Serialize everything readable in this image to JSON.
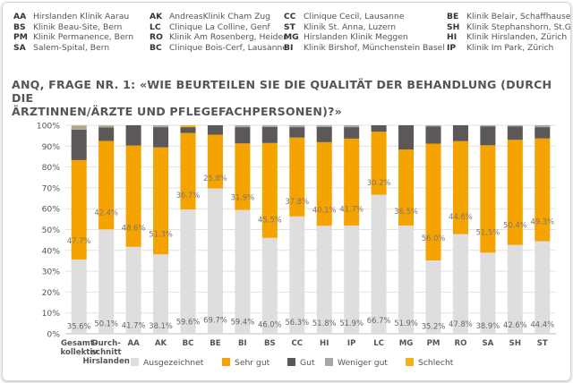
{
  "codes": [
    {
      "code": "AA",
      "name": "Hirslanden Klinik Aarau"
    },
    {
      "code": "BS",
      "name": "Klinik Beau-Site, Bern"
    },
    {
      "code": "PM",
      "name": "Klinik Permanence, Bern"
    },
    {
      "code": "SA",
      "name": "Salem-Spital, Bern"
    },
    {
      "code": "AK",
      "name": "AndreasKlinik Cham Zug"
    },
    {
      "code": "LC",
      "name": "Clinique La Colline, Genf"
    },
    {
      "code": "RO",
      "name": "Klinik Am Rosenberg, Heiden"
    },
    {
      "code": "BC",
      "name": "Clinique Bois-Cerf, Lausanne"
    },
    {
      "code": "CC",
      "name": "Clinique Cecil, Lausanne"
    },
    {
      "code": "ST",
      "name": "Klinik St. Anna, Luzern"
    },
    {
      "code": "MG",
      "name": "Hirslanden Klinik Meggen"
    },
    {
      "code": "BI",
      "name": "Klinik Birshof, Münchenstein Basel"
    },
    {
      "code": "BE",
      "name": "Klinik Belair, Schaffhausen"
    },
    {
      "code": "SH",
      "name": "Klinik Stephanshorn, St.Gallen"
    },
    {
      "code": "HI",
      "name": "Klinik Hirslanden, Zürich"
    },
    {
      "code": "IP",
      "name": "Klinik Im Park, Zürich"
    }
  ],
  "title_line1": "ANQ, FRAGE NR. 1: «WIE BEURTEILEN SIE DIE QUALITÄT DER BEHANDLUNG (DURCH DIE",
  "title_line2": "ÄRZTINNEN/ÄRZTE UND PFLEGEFACHPERSONEN)?»",
  "chart_data": {
    "type": "bar",
    "stacked": true,
    "categories": [
      "Gesamt-\nkollektiv",
      "Durch-\nschnitt\nHirslanden",
      "AA",
      "AK",
      "BC",
      "BE",
      "BI",
      "BS",
      "CC",
      "HI",
      "IP",
      "LC",
      "MG",
      "PM",
      "RO",
      "SA",
      "SH",
      "ST"
    ],
    "series": [
      {
        "name": "Ausgezeichnet",
        "color": "#e0dedd",
        "values": [
          35.6,
          50.1,
          41.7,
          38.1,
          59.6,
          69.7,
          59.4,
          46.0,
          56.3,
          51.8,
          51.9,
          66.7,
          51.9,
          35.2,
          47.8,
          38.9,
          42.6,
          44.4
        ],
        "labels": [
          "35.6%",
          "50.1%",
          "41.7%",
          "38.1%",
          "59.6%",
          "69.7%",
          "59.4%",
          "46.0%",
          "56.3%",
          "51.8%",
          "51.9%",
          "66.7%",
          "51.9%",
          "35.2%",
          "47.8%",
          "38.9%",
          "42.6%",
          "44.4%"
        ]
      },
      {
        "name": "Sehr gut",
        "color": "#f5a300",
        "values": [
          47.7,
          42.4,
          48.6,
          51.3,
          36.7,
          25.8,
          31.9,
          45.5,
          37.8,
          40.1,
          41.7,
          30.2,
          36.5,
          56.0,
          44.6,
          51.5,
          50.4,
          49.3
        ],
        "labels": [
          "47.7%",
          "42.4%",
          "48.6%",
          "51.3%",
          "36.7%",
          "25.8%",
          "31.9%",
          "45.5%",
          "37.8%",
          "40.1%",
          "41.7%",
          "30.2%",
          "36.5%",
          "56.0%",
          "44.6%",
          "51.5%",
          "50.4%",
          "49.3%"
        ]
      },
      {
        "name": "Gut",
        "color": "#5b5857",
        "values": [
          14.6,
          6.5,
          9.7,
          9.7,
          2.8,
          4.5,
          7.8,
          7.7,
          5.0,
          7.3,
          5.5,
          3.1,
          11.6,
          8.3,
          7.6,
          9.1,
          6.5,
          5.4
        ]
      },
      {
        "name": "Weniger gut",
        "color": "#a9a7a6",
        "values": [
          1.8,
          0.9,
          0,
          0.9,
          0,
          0,
          0.9,
          0.8,
          0.9,
          0.8,
          0.9,
          0,
          0,
          0.5,
          0,
          0.5,
          0.5,
          0.9
        ]
      },
      {
        "name": "Schlecht",
        "color": "#f4b11a",
        "values": [
          0.3,
          0.1,
          0,
          0,
          0.9,
          0,
          0,
          0,
          0,
          0,
          0,
          0,
          0,
          0,
          0,
          0,
          0,
          0
        ]
      }
    ],
    "yticks": [
      "0%",
      "10%",
      "20%",
      "30%",
      "40%",
      "50%",
      "60%",
      "70%",
      "80%",
      "90%",
      "100%"
    ],
    "ylim": [
      0,
      100
    ],
    "legend": [
      "Ausgezeichnet",
      "Sehr gut",
      "Gut",
      "Weniger gut",
      "Schlecht"
    ]
  }
}
